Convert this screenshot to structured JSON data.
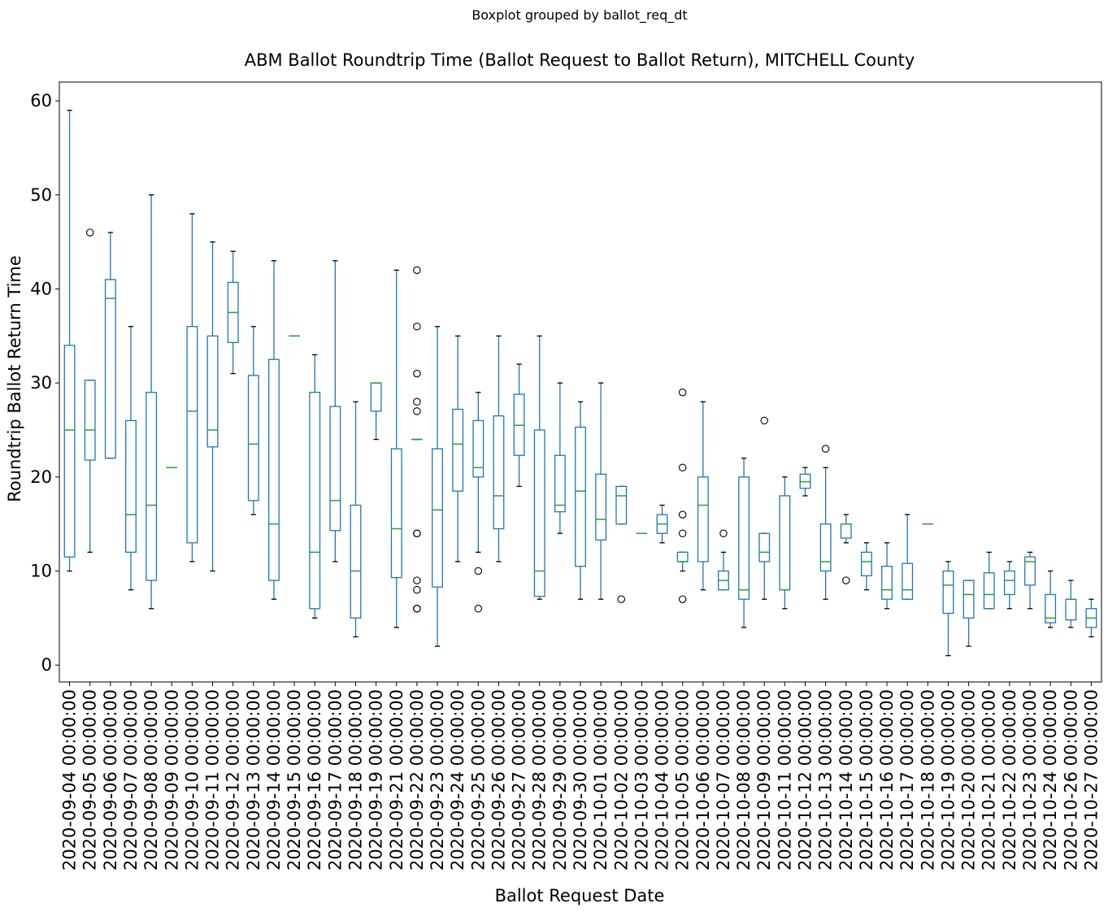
{
  "chart_data": {
    "type": "boxplot",
    "suptitle": "Boxplot grouped by ballot_req_dt",
    "title": "ABM Ballot Roundtrip Time (Ballot Request to Ballot Return), MITCHELL County",
    "xlabel": "Ballot Request Date",
    "ylabel": "Roundtrip Ballot Return Time",
    "ylim": [
      -1.8,
      62
    ],
    "yticks": [
      0,
      10,
      20,
      30,
      40,
      50,
      60
    ],
    "grid": false,
    "colors": {
      "box": "#1f77b4",
      "median": "#2ca02c",
      "whisker_cap": "#000000",
      "outlier": "#000000"
    },
    "categories": [
      "2020-09-04 00:00:00",
      "2020-09-05 00:00:00",
      "2020-09-06 00:00:00",
      "2020-09-07 00:00:00",
      "2020-09-08 00:00:00",
      "2020-09-09 00:00:00",
      "2020-09-10 00:00:00",
      "2020-09-11 00:00:00",
      "2020-09-12 00:00:00",
      "2020-09-13 00:00:00",
      "2020-09-14 00:00:00",
      "2020-09-15 00:00:00",
      "2020-09-16 00:00:00",
      "2020-09-17 00:00:00",
      "2020-09-18 00:00:00",
      "2020-09-19 00:00:00",
      "2020-09-21 00:00:00",
      "2020-09-22 00:00:00",
      "2020-09-23 00:00:00",
      "2020-09-24 00:00:00",
      "2020-09-25 00:00:00",
      "2020-09-26 00:00:00",
      "2020-09-27 00:00:00",
      "2020-09-28 00:00:00",
      "2020-09-29 00:00:00",
      "2020-09-30 00:00:00",
      "2020-10-01 00:00:00",
      "2020-10-02 00:00:00",
      "2020-10-03 00:00:00",
      "2020-10-04 00:00:00",
      "2020-10-05 00:00:00",
      "2020-10-06 00:00:00",
      "2020-10-07 00:00:00",
      "2020-10-08 00:00:00",
      "2020-10-09 00:00:00",
      "2020-10-11 00:00:00",
      "2020-10-12 00:00:00",
      "2020-10-13 00:00:00",
      "2020-10-14 00:00:00",
      "2020-10-15 00:00:00",
      "2020-10-16 00:00:00",
      "2020-10-17 00:00:00",
      "2020-10-18 00:00:00",
      "2020-10-19 00:00:00",
      "2020-10-20 00:00:00",
      "2020-10-21 00:00:00",
      "2020-10-22 00:00:00",
      "2020-10-23 00:00:00",
      "2020-10-24 00:00:00",
      "2020-10-26 00:00:00",
      "2020-10-27 00:00:00"
    ],
    "boxes": [
      {
        "whislo": 10,
        "q1": 11.5,
        "med": 25,
        "q3": 34,
        "whishi": 59,
        "fliers": []
      },
      {
        "whislo": 12,
        "q1": 21.8,
        "med": 25,
        "q3": 30.3,
        "whishi": 30.3,
        "fliers": [
          46
        ]
      },
      {
        "whislo": 22,
        "q1": 22,
        "med": 39,
        "q3": 41,
        "whishi": 46,
        "fliers": []
      },
      {
        "whislo": 8,
        "q1": 12,
        "med": 16,
        "q3": 26,
        "whishi": 36,
        "fliers": []
      },
      {
        "whislo": 6,
        "q1": 9,
        "med": 17,
        "q3": 29,
        "whishi": 50,
        "fliers": []
      },
      {
        "whislo": 21,
        "q1": 21,
        "med": 21,
        "q3": 21,
        "whishi": 21,
        "fliers": []
      },
      {
        "whislo": 11,
        "q1": 13,
        "med": 27,
        "q3": 36,
        "whishi": 48,
        "fliers": []
      },
      {
        "whislo": 10,
        "q1": 23.2,
        "med": 25,
        "q3": 35,
        "whishi": 45,
        "fliers": []
      },
      {
        "whislo": 31,
        "q1": 34.3,
        "med": 37.5,
        "q3": 40.7,
        "whishi": 44,
        "fliers": []
      },
      {
        "whislo": 16,
        "q1": 17.5,
        "med": 23.5,
        "q3": 30.8,
        "whishi": 36,
        "fliers": []
      },
      {
        "whislo": 7,
        "q1": 9,
        "med": 15,
        "q3": 32.5,
        "whishi": 43,
        "fliers": []
      },
      {
        "whislo": 35,
        "q1": 35,
        "med": 35,
        "q3": 35,
        "whishi": 35,
        "fliers": []
      },
      {
        "whislo": 5,
        "q1": 6,
        "med": 12,
        "q3": 29,
        "whishi": 33,
        "fliers": []
      },
      {
        "whislo": 11,
        "q1": 14.3,
        "med": 17.5,
        "q3": 27.5,
        "whishi": 43,
        "fliers": []
      },
      {
        "whislo": 3,
        "q1": 5,
        "med": 10,
        "q3": 17,
        "whishi": 28,
        "fliers": []
      },
      {
        "whislo": 24,
        "q1": 27,
        "med": 30,
        "q3": 30,
        "whishi": 30,
        "fliers": []
      },
      {
        "whislo": 4,
        "q1": 9.3,
        "med": 14.5,
        "q3": 23,
        "whishi": 42,
        "fliers": []
      },
      {
        "whislo": 24,
        "q1": 24,
        "med": 24,
        "q3": 24,
        "whishi": 24,
        "fliers": [
          42,
          36,
          31,
          28,
          27,
          14,
          14,
          9,
          8,
          6,
          6
        ]
      },
      {
        "whislo": 2,
        "q1": 8.3,
        "med": 16.5,
        "q3": 23,
        "whishi": 36,
        "fliers": []
      },
      {
        "whislo": 11,
        "q1": 18.5,
        "med": 23.5,
        "q3": 27.2,
        "whishi": 35,
        "fliers": []
      },
      {
        "whislo": 12,
        "q1": 20,
        "med": 21,
        "q3": 26,
        "whishi": 29,
        "fliers": [
          10,
          6
        ]
      },
      {
        "whislo": 11,
        "q1": 14.5,
        "med": 18,
        "q3": 26.5,
        "whishi": 35,
        "fliers": []
      },
      {
        "whislo": 19,
        "q1": 22.3,
        "med": 25.5,
        "q3": 28.8,
        "whishi": 32,
        "fliers": []
      },
      {
        "whislo": 7,
        "q1": 7.3,
        "med": 10,
        "q3": 25,
        "whishi": 35,
        "fliers": []
      },
      {
        "whislo": 14,
        "q1": 16.3,
        "med": 17,
        "q3": 22.3,
        "whishi": 30,
        "fliers": []
      },
      {
        "whislo": 7,
        "q1": 10.5,
        "med": 18.5,
        "q3": 25.3,
        "whishi": 28,
        "fliers": []
      },
      {
        "whislo": 7,
        "q1": 13.3,
        "med": 15.5,
        "q3": 20.3,
        "whishi": 30,
        "fliers": []
      },
      {
        "whislo": 15,
        "q1": 15,
        "med": 18,
        "q3": 19,
        "whishi": 19,
        "fliers": [
          7
        ]
      },
      {
        "whislo": 14,
        "q1": 14,
        "med": 14,
        "q3": 14,
        "whishi": 14,
        "fliers": []
      },
      {
        "whislo": 13,
        "q1": 14,
        "med": 15,
        "q3": 16,
        "whishi": 17,
        "fliers": []
      },
      {
        "whislo": 10,
        "q1": 11,
        "med": 11,
        "q3": 12,
        "whishi": 12,
        "fliers": [
          29,
          21,
          16,
          14,
          7
        ]
      },
      {
        "whislo": 8,
        "q1": 11,
        "med": 17,
        "q3": 20,
        "whishi": 28,
        "fliers": []
      },
      {
        "whislo": 8,
        "q1": 8,
        "med": 9,
        "q3": 10,
        "whishi": 12,
        "fliers": [
          14
        ]
      },
      {
        "whislo": 4,
        "q1": 7,
        "med": 8,
        "q3": 20,
        "whishi": 22,
        "fliers": []
      },
      {
        "whislo": 7,
        "q1": 11,
        "med": 12,
        "q3": 14,
        "whishi": 14,
        "fliers": [
          26
        ]
      },
      {
        "whislo": 6,
        "q1": 8,
        "med": 8,
        "q3": 18,
        "whishi": 20,
        "fliers": []
      },
      {
        "whislo": 18,
        "q1": 18.8,
        "med": 19.5,
        "q3": 20.3,
        "whishi": 21,
        "fliers": []
      },
      {
        "whislo": 7,
        "q1": 10,
        "med": 11,
        "q3": 15,
        "whishi": 21,
        "fliers": [
          23
        ]
      },
      {
        "whislo": 13,
        "q1": 13.5,
        "med": 15,
        "q3": 15,
        "whishi": 16,
        "fliers": [
          9
        ]
      },
      {
        "whislo": 8,
        "q1": 9.5,
        "med": 11,
        "q3": 12,
        "whishi": 13,
        "fliers": []
      },
      {
        "whislo": 6,
        "q1": 7,
        "med": 8,
        "q3": 10.5,
        "whishi": 13,
        "fliers": []
      },
      {
        "whislo": 7,
        "q1": 7,
        "med": 8,
        "q3": 10.8,
        "whishi": 16,
        "fliers": []
      },
      {
        "whislo": 15,
        "q1": 15,
        "med": 15,
        "q3": 15,
        "whishi": 15,
        "fliers": []
      },
      {
        "whislo": 1,
        "q1": 5.5,
        "med": 8.5,
        "q3": 10,
        "whishi": 11,
        "fliers": []
      },
      {
        "whislo": 2,
        "q1": 5,
        "med": 7.5,
        "q3": 9,
        "whishi": 9,
        "fliers": []
      },
      {
        "whislo": 6,
        "q1": 6,
        "med": 7.5,
        "q3": 9.8,
        "whishi": 12,
        "fliers": []
      },
      {
        "whislo": 6,
        "q1": 7.5,
        "med": 9,
        "q3": 10,
        "whishi": 11,
        "fliers": []
      },
      {
        "whislo": 6,
        "q1": 8.5,
        "med": 11,
        "q3": 11.5,
        "whishi": 12,
        "fliers": []
      },
      {
        "whislo": 4,
        "q1": 4.5,
        "med": 5,
        "q3": 7.5,
        "whishi": 10,
        "fliers": []
      },
      {
        "whislo": 4,
        "q1": 4.8,
        "med": 7,
        "q3": 7,
        "whishi": 9,
        "fliers": []
      },
      {
        "whislo": 3,
        "q1": 4,
        "med": 5,
        "q3": 6,
        "whishi": 7,
        "fliers": []
      }
    ]
  }
}
